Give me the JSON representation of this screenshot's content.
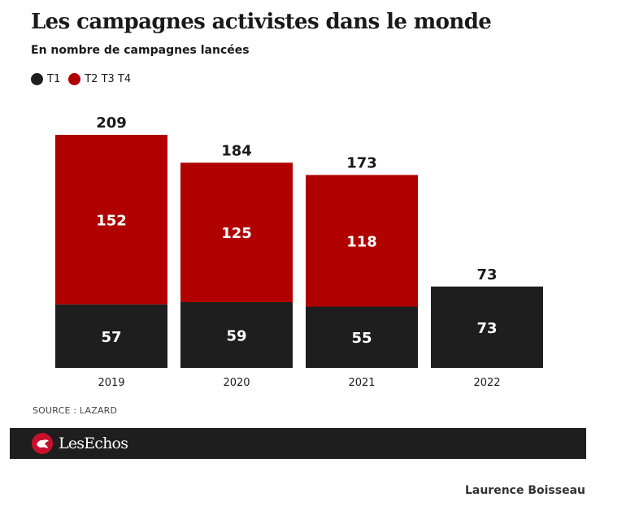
{
  "title": "Les campagnes activistes dans le monde",
  "subtitle": "En nombre de campagnes lancées",
  "legend": [
    {
      "label": "T1",
      "color": "#1e1e1e"
    },
    {
      "label": "T2 T3 T4",
      "color": "#b00000"
    }
  ],
  "chart_data": {
    "type": "bar",
    "stacked": true,
    "categories": [
      "2019",
      "2020",
      "2021",
      "2022"
    ],
    "series": [
      {
        "name": "T1",
        "values": [
          57,
          59,
          55,
          73
        ],
        "color": "#1e1e1e"
      },
      {
        "name": "T2 T3 T4",
        "values": [
          152,
          125,
          118,
          null
        ],
        "color": "#b00000"
      }
    ],
    "totals": [
      209,
      184,
      173,
      73
    ],
    "title": "Les campagnes activistes dans le monde",
    "subtitle": "En nombre de campagnes lancées",
    "xlabel": "",
    "ylabel": "",
    "ylim": [
      0,
      209
    ],
    "grid": false,
    "legend_position": "top-left"
  },
  "source": "SOURCE : LAZARD",
  "footer": {
    "brand": "LesEchos",
    "logo_icon": "les-echos-logo-icon"
  },
  "author": "Laurence Boisseau"
}
